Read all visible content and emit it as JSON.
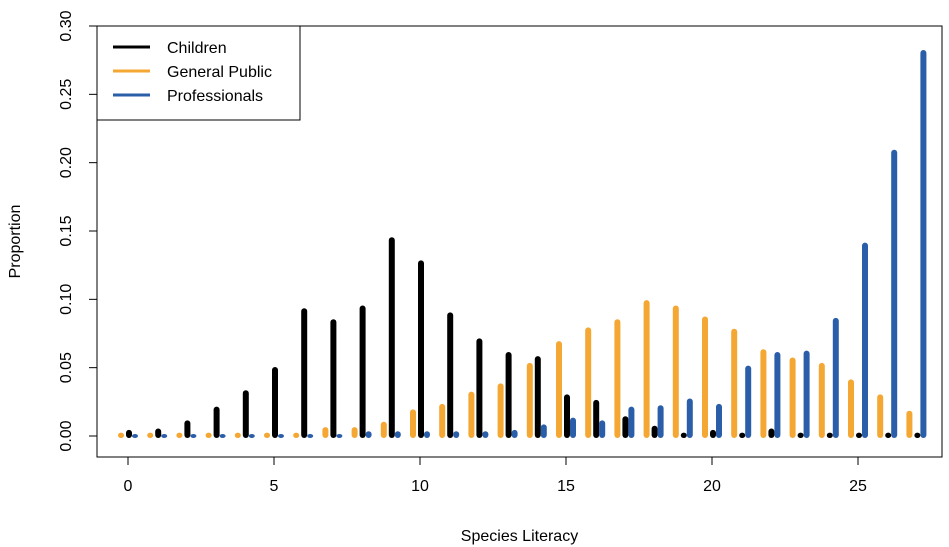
{
  "chart_data": {
    "type": "bar",
    "xlabel": "Species Literacy",
    "ylabel": "Proportion",
    "xlim": [
      -1,
      28
    ],
    "ylim": [
      0,
      0.3
    ],
    "x_ticks": [
      0,
      5,
      10,
      15,
      20,
      25
    ],
    "y_ticks": [
      "0.00",
      "0.05",
      "0.10",
      "0.15",
      "0.20",
      "0.25",
      "0.30"
    ],
    "legend_position": "top-left",
    "x": [
      0,
      1,
      2,
      3,
      4,
      5,
      6,
      7,
      8,
      9,
      10,
      11,
      12,
      13,
      14,
      15,
      16,
      17,
      18,
      19,
      20,
      21,
      22,
      23,
      24,
      25,
      26,
      27
    ],
    "series": [
      {
        "name": "Children",
        "color": "#000000",
        "values": [
          0.003,
          0.004,
          0.01,
          0.02,
          0.032,
          0.049,
          0.092,
          0.084,
          0.094,
          0.144,
          0.127,
          0.089,
          0.07,
          0.06,
          0.057,
          0.029,
          0.025,
          0.013,
          0.006,
          0.001,
          0.003,
          0.001,
          0.004,
          0.001,
          0.001,
          0.001,
          0.001,
          0.001
        ]
      },
      {
        "name": "General Public",
        "color": "#F5A733",
        "values": [
          0.001,
          0.001,
          0.001,
          0.001,
          0.001,
          0.001,
          0.001,
          0.005,
          0.005,
          0.009,
          0.018,
          0.022,
          0.031,
          0.037,
          0.052,
          0.068,
          0.078,
          0.084,
          0.098,
          0.094,
          0.086,
          0.077,
          0.062,
          0.056,
          0.052,
          0.04,
          0.029,
          0.017
        ]
      },
      {
        "name": "Professionals",
        "color": "#2A5EA8",
        "values": [
          0.0,
          0.0,
          0.0,
          0.0,
          0.0,
          0.0,
          0.0,
          0.0,
          0.002,
          0.002,
          0.002,
          0.002,
          0.002,
          0.003,
          0.007,
          0.012,
          0.01,
          0.02,
          0.021,
          0.026,
          0.022,
          0.05,
          0.06,
          0.061,
          0.085,
          0.14,
          0.208,
          0.281
        ]
      }
    ]
  }
}
